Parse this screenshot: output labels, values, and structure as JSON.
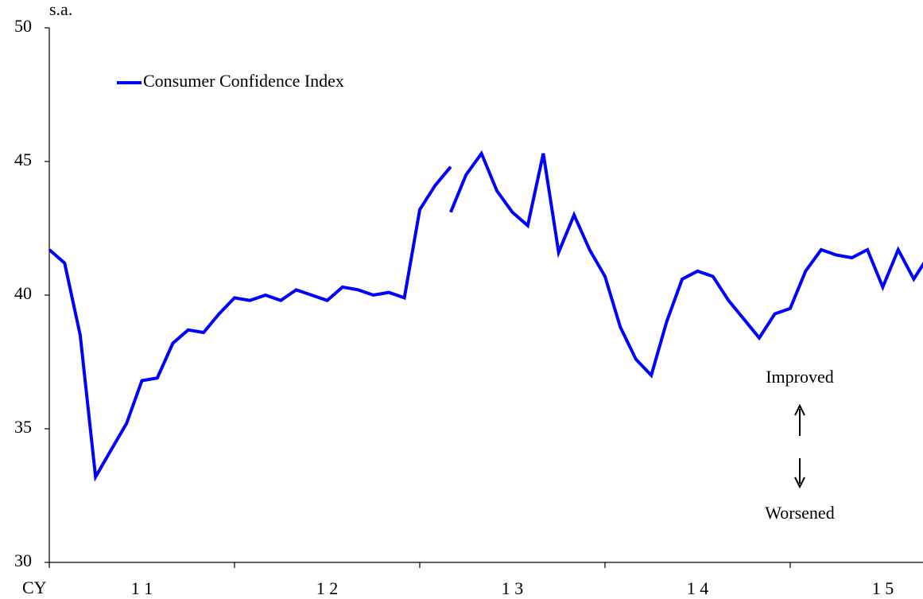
{
  "chart_data": {
    "type": "line",
    "y_unit_label": "s.a.",
    "x_unit_label": "CY",
    "annotations": [
      "Improved",
      "Worsened"
    ],
    "xlim": [
      2011,
      2015.717
    ],
    "xticks": [
      2011,
      2012,
      2013,
      2014,
      2015
    ],
    "xtick_labels": [
      {
        "value": 2011.5,
        "label": "1 1"
      },
      {
        "value": 2012.5,
        "label": "1 2"
      },
      {
        "value": 2013.5,
        "label": "1 3"
      },
      {
        "value": 2014.5,
        "label": "1 4"
      },
      {
        "value": 2015.5,
        "label": "1 5"
      }
    ],
    "ylim": [
      30,
      50
    ],
    "yticks": [
      30,
      35,
      40,
      45,
      50
    ],
    "grid": false,
    "legend": "upper left",
    "series": [
      {
        "name": "Consumer Confidence Index",
        "color": "#0000ff",
        "x": [
          2011,
          2011.083,
          2011.167,
          2011.25,
          2011.333,
          2011.417,
          2011.5,
          2011.583,
          2011.667,
          2011.75,
          2011.833,
          2011.917,
          2012,
          2012.083,
          2012.167,
          2012.25,
          2012.333,
          2012.417,
          2012.5,
          2012.583,
          2012.667,
          2012.75,
          2012.833,
          2012.917,
          2013,
          2013.083,
          2013.167,
          null,
          2013.167,
          2013.25,
          2013.333,
          2013.417,
          2013.5,
          2013.583,
          2013.667,
          2013.75,
          2013.833,
          2013.917,
          2014,
          2014.083,
          2014.167,
          2014.25,
          2014.333,
          2014.417,
          2014.5,
          2014.583,
          2014.667,
          2014.75,
          2014.833,
          2014.917,
          2015,
          2015.083,
          2015.167,
          2015.25,
          2015.333,
          2015.417,
          2015.5,
          2015.583,
          2015.667,
          2015.75
        ],
        "values": [
          41.7,
          41.2,
          38.5,
          33.2,
          34.2,
          35.2,
          36.8,
          36.9,
          38.2,
          38.7,
          38.6,
          39.3,
          39.9,
          39.8,
          40.0,
          39.8,
          40.2,
          40.0,
          39.8,
          40.3,
          40.2,
          40.0,
          40.1,
          39.9,
          43.2,
          44.1,
          44.8,
          null,
          43.1,
          44.5,
          45.3,
          43.9,
          43.1,
          42.6,
          45.3,
          41.6,
          43.0,
          41.7,
          40.7,
          38.8,
          37.6,
          37.0,
          39.0,
          40.6,
          40.9,
          40.7,
          39.8,
          39.1,
          38.4,
          39.3,
          39.5,
          40.9,
          41.7,
          41.5,
          41.4,
          41.7,
          40.3,
          41.7,
          40.6,
          41.5
        ]
      }
    ]
  }
}
